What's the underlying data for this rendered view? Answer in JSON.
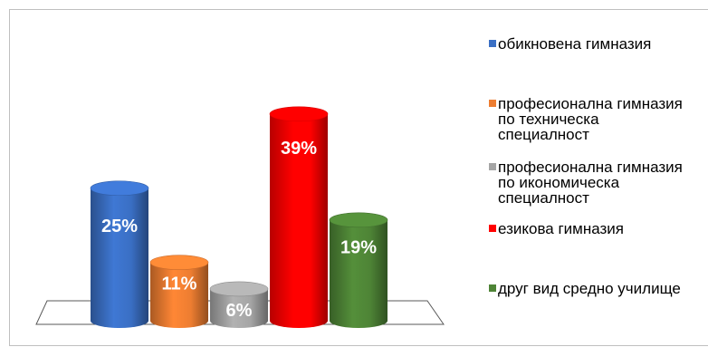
{
  "chart_data": {
    "type": "bar",
    "style": "3d-cylinder",
    "categories": [
      "обикновена гимназия",
      "професионална гимназия\nпо техническа\nспециалност",
      "професионална гимназия\nпо икономическа\nспециалност",
      "езикова гимназия",
      "друг вид средно училище"
    ],
    "values": [
      25,
      11,
      6,
      39,
      19
    ],
    "labels": [
      "25%",
      "11%",
      "6%",
      "39%",
      "19%"
    ],
    "colors": [
      "#3a6fc4",
      "#ed7d31",
      "#a5a5a5",
      "#ff0000",
      "#4e8436"
    ],
    "legend_position": "right",
    "grid": false
  }
}
